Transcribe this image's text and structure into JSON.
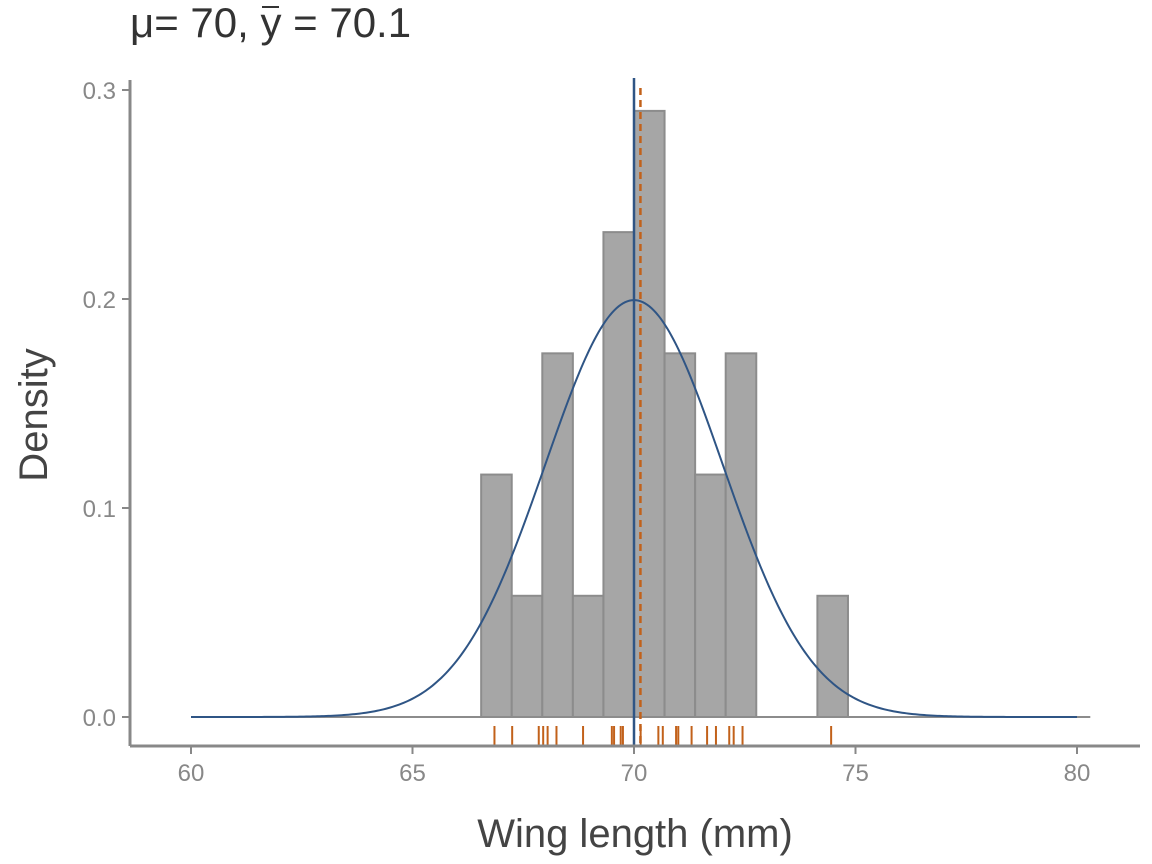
{
  "title": {
    "mu_symbol": "μ",
    "mu_text": "= 70, ",
    "ybar_symbol": "y",
    "ybar_text": " = 70.1"
  },
  "chart_data": {
    "type": "bar",
    "subtype": "histogram",
    "xlabel": "Wing length (mm)",
    "ylabel": "Density",
    "xlim": [
      59.6,
      80.3
    ],
    "ylim": [
      0,
      0.3
    ],
    "x_ticks": [
      60,
      65,
      70,
      75,
      80
    ],
    "y_ticks": [
      0.0,
      0.1,
      0.2,
      0.3
    ],
    "y_tick_labels": [
      "0.0",
      "0.1",
      "0.2",
      "0.3"
    ],
    "bin_width": 0.69,
    "bins": [
      {
        "start": 66.55,
        "end": 67.24,
        "density": 0.116
      },
      {
        "start": 67.24,
        "end": 67.93,
        "density": 0.058
      },
      {
        "start": 67.93,
        "end": 68.62,
        "density": 0.174
      },
      {
        "start": 68.62,
        "end": 69.31,
        "density": 0.058
      },
      {
        "start": 69.31,
        "end": 70.0,
        "density": 0.232
      },
      {
        "start": 70.0,
        "end": 70.69,
        "density": 0.29
      },
      {
        "start": 70.69,
        "end": 71.38,
        "density": 0.174
      },
      {
        "start": 71.38,
        "end": 72.07,
        "density": 0.116
      },
      {
        "start": 72.07,
        "end": 72.76,
        "density": 0.174
      },
      {
        "start": 74.14,
        "end": 74.83,
        "density": 0.058
      }
    ],
    "normal_curve": {
      "mean": 70,
      "sd": 2
    },
    "mu_line": 70,
    "mean_line": 70.1,
    "rug": [
      66.85,
      67.25,
      67.85,
      67.95,
      68.05,
      68.25,
      68.85,
      69.5,
      69.55,
      69.7,
      69.75,
      70.15,
      70.55,
      70.65,
      70.95,
      71.0,
      71.3,
      71.65,
      71.85,
      72.15,
      72.25,
      72.45,
      74.45
    ],
    "colors": {
      "bar_fill": "#a6a6a6",
      "bar_stroke": "#8c8c8c",
      "curve": "#2f5585",
      "mu_line": "#2f5585",
      "mean_line": "#c2611a",
      "rug": "#c2611a",
      "axis": "#888888"
    }
  }
}
